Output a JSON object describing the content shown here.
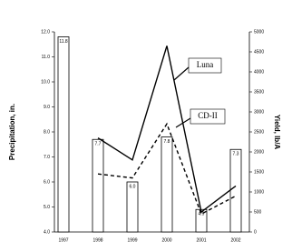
{
  "chart_data": {
    "type": "combo",
    "categories": [
      "1997",
      "1998",
      "1999",
      "2000",
      "2001",
      "2002"
    ],
    "values": [
      11.8,
      7.7,
      6.0,
      7.8,
      4.9,
      7.3
    ],
    "value_labels": [
      "11.8",
      "7.7",
      "6.0",
      "7.8",
      "4.9",
      "7.3"
    ],
    "color": "#ffffff",
    "ylabel": "Precipitation, in.",
    "y2label": "Yield, lb/A",
    "ylim": [
      4,
      12
    ],
    "yticks": [
      {
        "value": 4,
        "label": "4.0"
      },
      {
        "value": 5,
        "label": "5.0"
      },
      {
        "value": 6,
        "label": "6.0"
      },
      {
        "value": 7,
        "label": "7.0"
      },
      {
        "value": 8,
        "label": "8.0"
      },
      {
        "value": 9,
        "label": "9.0"
      },
      {
        "value": 10,
        "label": "10.0"
      },
      {
        "value": 11,
        "label": "11.0"
      },
      {
        "value": 12,
        "label": "12.0"
      }
    ],
    "y2lim": [
      0,
      5000
    ],
    "y2ticks": [
      0,
      500,
      1000,
      1500,
      2000,
      2500,
      3000,
      3500,
      4000,
      4500,
      5000
    ],
    "series": [
      {
        "name": "Luna",
        "color": "#000000",
        "line_style": "solid",
        "axis": "y2",
        "values": [
          null,
          2350,
          1800,
          4650,
          500,
          1150
        ]
      },
      {
        "name": "CD-II",
        "color": "#000000",
        "line_style": "dashed",
        "axis": "y2",
        "values": [
          null,
          1450,
          1350,
          2700,
          450,
          900
        ]
      }
    ]
  }
}
